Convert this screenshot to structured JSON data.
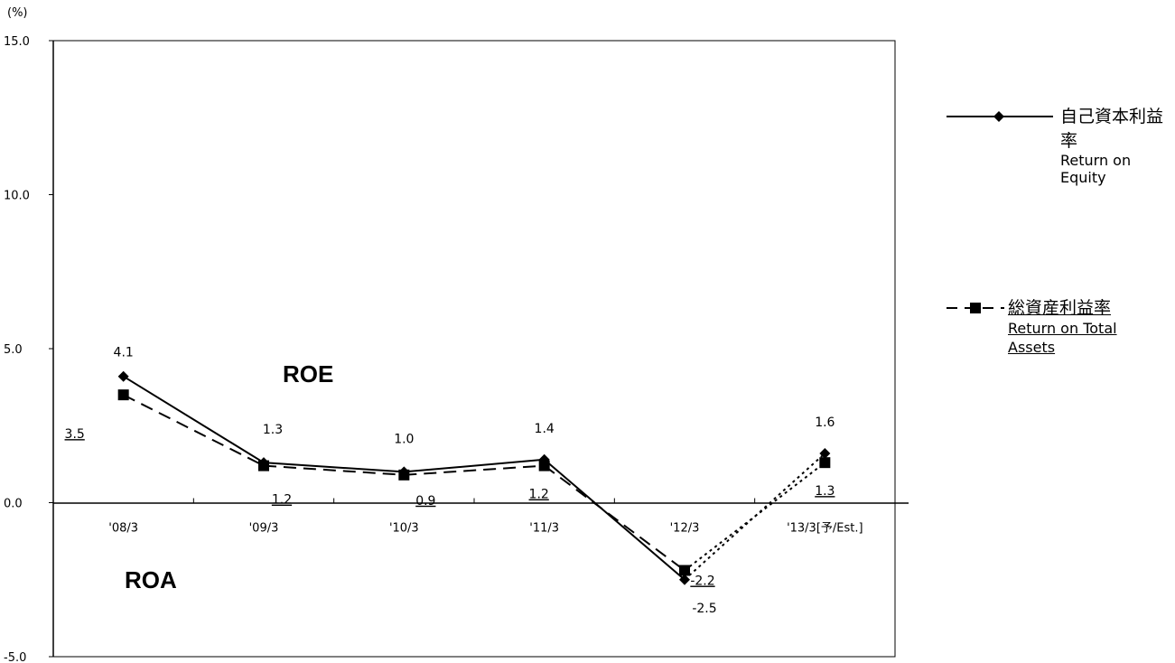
{
  "chart_data": {
    "type": "line",
    "unit_label": "(%)",
    "categories": [
      "'08/3",
      "'09/3",
      "'10/3",
      "'11/3",
      "'12/3",
      "'13/3[予/Est.]"
    ],
    "ylim": [
      -5.0,
      15.0
    ],
    "yticks": [
      "15.0",
      "10.0",
      "5.0",
      "0.0",
      "-5.0"
    ],
    "grid": false,
    "legend_position": "right",
    "series": [
      {
        "name_jp": "自己資本利益率",
        "name_en": "Return on Equity",
        "short": "ROE",
        "values": [
          4.1,
          1.3,
          1.0,
          1.4,
          -2.5,
          1.6
        ],
        "labels": [
          "4.1",
          "1.3",
          "1.0",
          "1.4",
          "-2.5",
          "1.6"
        ],
        "marker": "diamond",
        "line": "solid",
        "estimate_line": "dotted",
        "color": "#000000"
      },
      {
        "name_jp": "総資産利益率",
        "name_en": "Return on Total Assets",
        "short": "ROA",
        "values": [
          3.5,
          1.2,
          0.9,
          1.2,
          -2.2,
          1.3
        ],
        "labels": [
          "3.5",
          "1.2",
          "0.9",
          "1.2",
          "-2.2",
          "1.3"
        ],
        "marker": "square",
        "line": "dashed",
        "estimate_line": "dotted",
        "color": "#000000"
      }
    ]
  }
}
